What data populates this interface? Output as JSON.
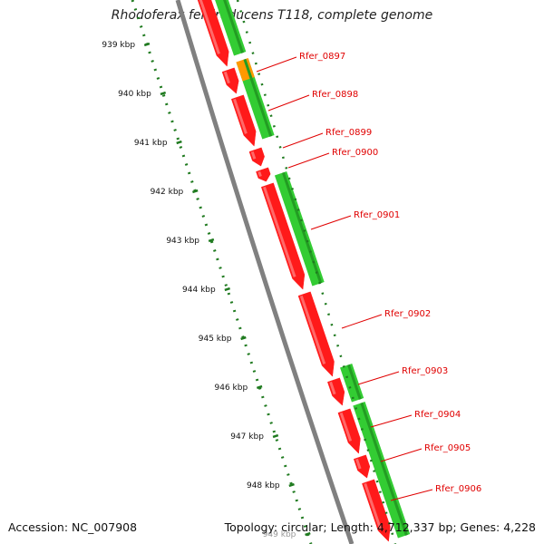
{
  "title": "Rhodoferax ferrireducens T118, complete genome",
  "footer": {
    "accession": "Accession: NC_007908",
    "summary": "Topology: circular; Length: 4,712,337 bp; Genes: 4,228"
  },
  "colors": {
    "forward": "#ff1a1a",
    "reverse": "#33cc33",
    "reverse_dark": "#239c23",
    "rna": "#ff9900",
    "backbone": "#808080",
    "tick": "#1f7a1f",
    "label": "#e00000"
  },
  "scale": {
    "ticks": [
      {
        "label": "939 kbp"
      },
      {
        "label": "940 kbp"
      },
      {
        "label": "941 kbp"
      },
      {
        "label": "942 kbp"
      },
      {
        "label": "943 kbp"
      },
      {
        "label": "944 kbp"
      },
      {
        "label": "945 kbp"
      },
      {
        "label": "946 kbp"
      },
      {
        "label": "947 kbp"
      },
      {
        "label": "948 kbp"
      },
      {
        "label": "949 kbp"
      }
    ]
  },
  "genes": [
    {
      "label": "Rfer_0897"
    },
    {
      "label": "Rfer_0898"
    },
    {
      "label": "Rfer_0899"
    },
    {
      "label": "Rfer_0900"
    },
    {
      "label": "Rfer_0901"
    },
    {
      "label": "Rfer_0902"
    },
    {
      "label": "Rfer_0903"
    },
    {
      "label": "Rfer_0904"
    },
    {
      "label": "Rfer_0905"
    },
    {
      "label": "Rfer_0906"
    }
  ]
}
